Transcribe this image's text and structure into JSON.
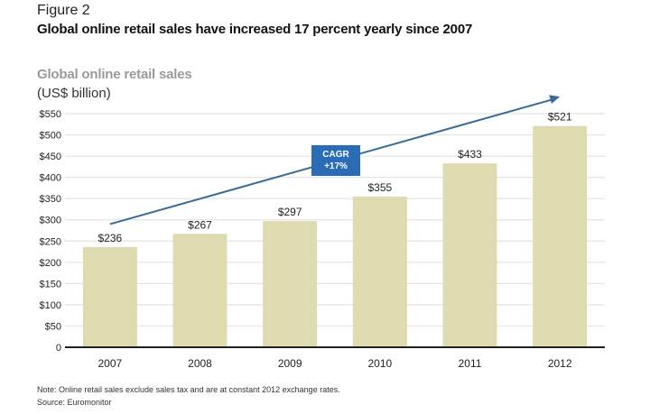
{
  "figure_label": "Figure 2",
  "figure_title": "Global online retail sales have increased 17 percent yearly since 2007",
  "note": "Note: Online retail sales exclude sales tax and are at constant 2012 exchange rates.",
  "source": "Source: Euromonitor",
  "annotation": {
    "line1": "CAGR",
    "line2": "+17%"
  },
  "colors": {
    "bar": "#dfdbb0",
    "arrow": "#3a6a9a",
    "badge": "#2a6cb5",
    "grid": "#e4e4e4",
    "axis": "#222222"
  },
  "chart_data": {
    "type": "bar",
    "title": "Global online retail sales",
    "subtitle": "(US$ billion)",
    "xlabel": "",
    "ylabel": "",
    "categories": [
      "2007",
      "2008",
      "2009",
      "2010",
      "2011",
      "2012"
    ],
    "values": [
      236,
      267,
      297,
      355,
      433,
      521
    ],
    "data_labels": [
      "$236",
      "$267",
      "$297",
      "$355",
      "$433",
      "$521"
    ],
    "ylim": [
      0,
      550
    ],
    "yticks": [
      0,
      50,
      100,
      150,
      200,
      250,
      300,
      350,
      400,
      450,
      500,
      550
    ],
    "ytick_labels": [
      "0",
      "$50",
      "$100",
      "$150",
      "$200",
      "$250",
      "$300",
      "$350",
      "$400",
      "$450",
      "$500",
      "$550"
    ],
    "grid": true,
    "legend": "none",
    "trend_annotation": "CAGR +17%"
  }
}
